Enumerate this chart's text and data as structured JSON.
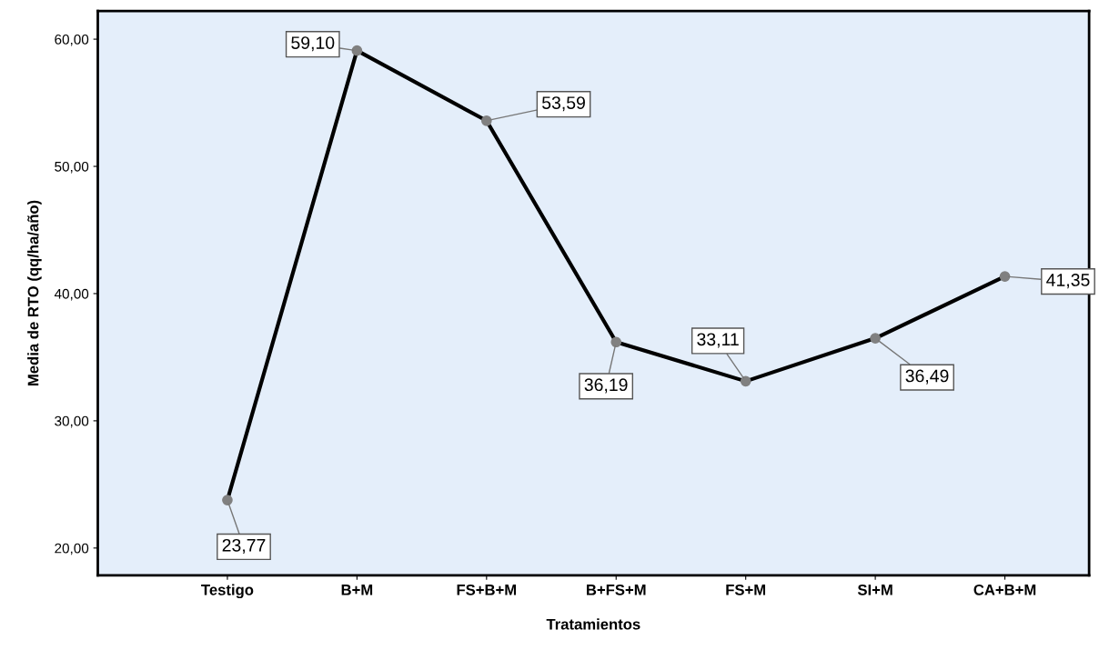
{
  "chart_data": {
    "type": "line",
    "xlabel": "Tratamientos",
    "ylabel": "Media de RTO (qq/ha/año)",
    "categories": [
      "Testigo",
      "B+M",
      "FS+B+M",
      "B+FS+M",
      "FS+M",
      "SI+M",
      "CA+B+M"
    ],
    "series": [
      {
        "color": "#000000",
        "values": [
          23.77,
          59.1,
          53.59,
          36.19,
          33.11,
          36.49,
          41.35
        ],
        "value_labels": [
          "23,77",
          "59,10",
          "53,59",
          "36,19",
          "33,11",
          "36,49",
          "41,35"
        ]
      }
    ],
    "ylim": [
      17.86,
      62.21
    ],
    "yticks": [
      {
        "value": 20,
        "label": "20,00"
      },
      {
        "value": 30,
        "label": "30,00"
      },
      {
        "value": 40,
        "label": "40,00"
      },
      {
        "value": 50,
        "label": "50,00"
      },
      {
        "value": 60,
        "label": "60,00"
      }
    ],
    "marker": "circle",
    "line_style": "solid",
    "grid": false
  }
}
